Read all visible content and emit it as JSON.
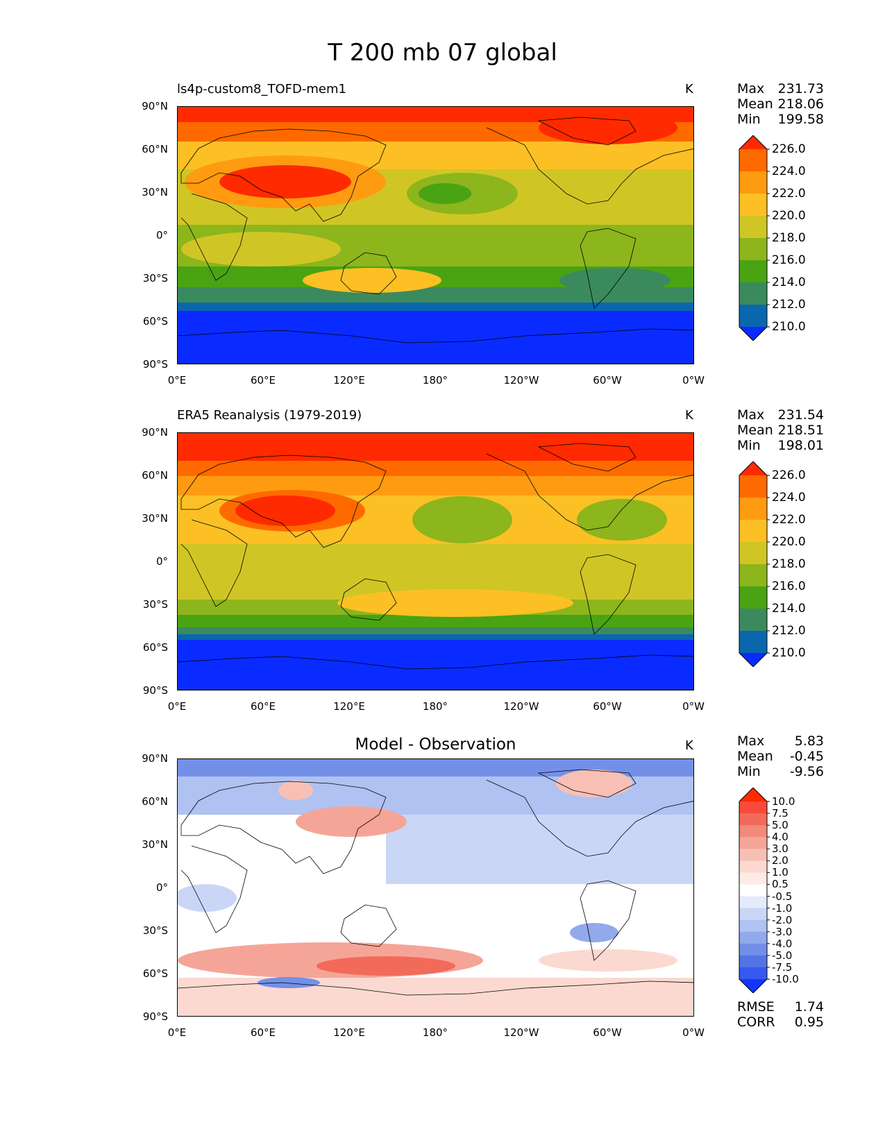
{
  "title": "T 200 mb 07 global",
  "x_tick_labels": [
    "0°E",
    "60°E",
    "120°E",
    "180°",
    "120°W",
    "60°W",
    "0°W"
  ],
  "y_tick_labels": [
    "90°N",
    "60°N",
    "30°N",
    "0°",
    "30°S",
    "60°S",
    "90°S"
  ],
  "chart_data": [
    {
      "type": "heatmap",
      "title": "ls4p-custom8_TOFD-mem1",
      "units": "K",
      "stats": {
        "max_label": "Max",
        "max": "231.73",
        "mean_label": "Mean",
        "mean": "218.06",
        "min_label": "Min",
        "min": "199.58"
      },
      "xlim": [
        0,
        360
      ],
      "ylim": [
        -90,
        90
      ],
      "colorbar": {
        "levels": [
          "226.0",
          "224.0",
          "222.0",
          "220.0",
          "218.0",
          "216.0",
          "214.0",
          "212.0",
          "210.0"
        ],
        "colors": [
          "#ff2a00",
          "#ff6a00",
          "#ff9b10",
          "#fcc024",
          "#cfc625",
          "#8db51c",
          "#4aa313",
          "#3b8a5e",
          "#0a67ae",
          "#0a2bff"
        ]
      }
    },
    {
      "type": "heatmap",
      "title": "ERA5 Reanalysis (1979-2019)",
      "units": "K",
      "stats": {
        "max_label": "Max",
        "max": "231.54",
        "mean_label": "Mean",
        "mean": "218.51",
        "min_label": "Min",
        "min": "198.01"
      },
      "xlim": [
        0,
        360
      ],
      "ylim": [
        -90,
        90
      ],
      "colorbar": {
        "levels": [
          "226.0",
          "224.0",
          "222.0",
          "220.0",
          "218.0",
          "216.0",
          "214.0",
          "212.0",
          "210.0"
        ],
        "colors": [
          "#ff2a00",
          "#ff6a00",
          "#ff9b10",
          "#fcc024",
          "#cfc625",
          "#8db51c",
          "#4aa313",
          "#3b8a5e",
          "#0a67ae",
          "#0a2bff"
        ]
      }
    },
    {
      "type": "heatmap",
      "title": "Model - Observation",
      "units": "K",
      "stats": {
        "max_label": "Max",
        "max": "5.83",
        "mean_label": "Mean",
        "mean": "-0.45",
        "min_label": "Min",
        "min": "-9.56"
      },
      "extra_stats": {
        "rmse_label": "RMSE",
        "rmse": "1.74",
        "corr_label": "CORR",
        "corr": "0.95"
      },
      "xlim": [
        0,
        360
      ],
      "ylim": [
        -90,
        90
      ],
      "colorbar": {
        "levels": [
          "10.0",
          "7.5",
          "5.0",
          "4.0",
          "3.0",
          "2.0",
          "1.0",
          "0.5",
          "-0.5",
          "-1.0",
          "-2.0",
          "-3.0",
          "-4.0",
          "-5.0",
          "-7.5",
          "-10.0"
        ],
        "colors": [
          "#ff2a00",
          "#f84a3a",
          "#f26a5a",
          "#f28a7a",
          "#f5a597",
          "#f8c0b4",
          "#fbd9d0",
          "#fdebe6",
          "#ffffff",
          "#e4ebfb",
          "#cad6f6",
          "#afc2f1",
          "#92a9ec",
          "#7390e8",
          "#5374e6",
          "#3559f0",
          "#1535ff"
        ]
      }
    }
  ]
}
